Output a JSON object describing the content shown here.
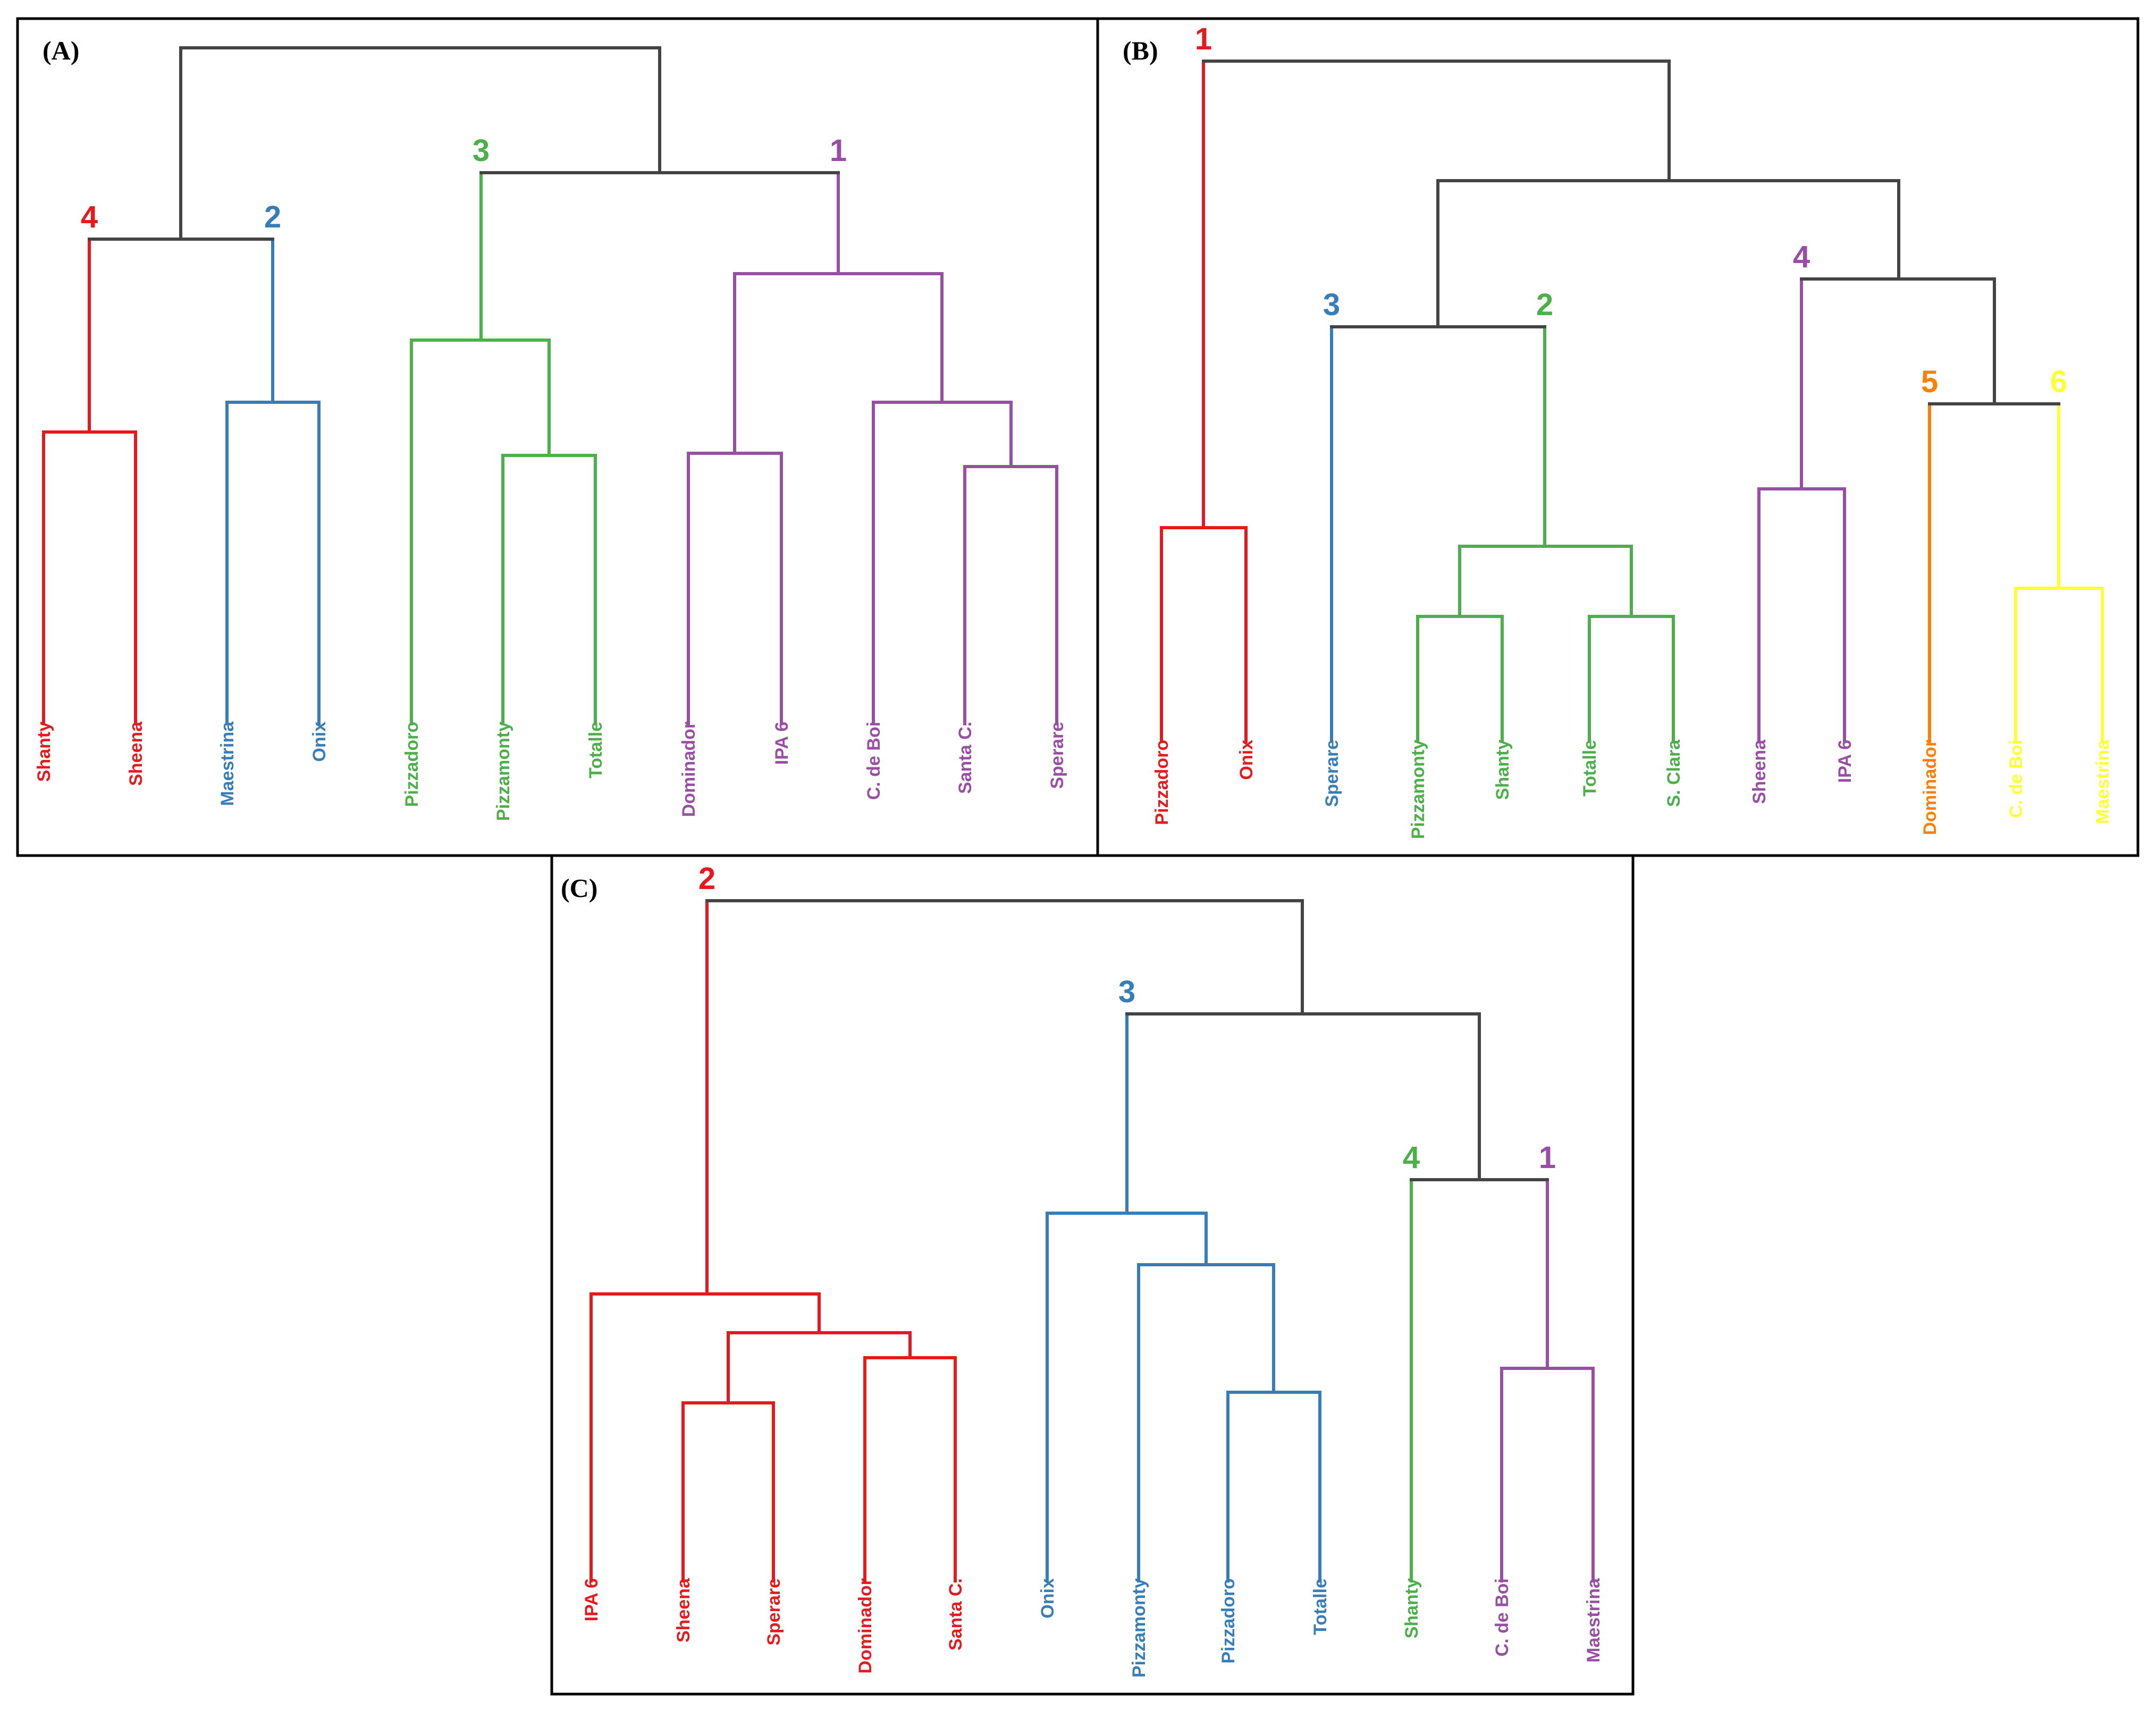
{
  "colors": {
    "red": "#e41a1c",
    "blue": "#377eb8",
    "green": "#4daf4a",
    "purple": "#984ea3",
    "orange": "#ff7f00",
    "yellow": "#ffff33",
    "root": "#444444"
  },
  "panels": [
    {
      "label": "(A)",
      "clusters": [
        {
          "num": "4",
          "color": "red"
        },
        {
          "num": "2",
          "color": "blue"
        },
        {
          "num": "3",
          "color": "green"
        },
        {
          "num": "1",
          "color": "purple"
        }
      ],
      "leaves": [
        {
          "name": "Shanty",
          "color": "red"
        },
        {
          "name": "Sheena",
          "color": "red"
        },
        {
          "name": "Maestrina",
          "color": "blue"
        },
        {
          "name": "Onix",
          "color": "blue"
        },
        {
          "name": "Pizzadoro",
          "color": "green"
        },
        {
          "name": "Pizzamonty",
          "color": "green"
        },
        {
          "name": "Totalle",
          "color": "green"
        },
        {
          "name": "Dominador",
          "color": "purple"
        },
        {
          "name": "IPA 6",
          "color": "purple"
        },
        {
          "name": "C. de Boi",
          "color": "purple"
        },
        {
          "name": "Santa C.",
          "color": "purple"
        },
        {
          "name": "Sperare",
          "color": "purple"
        }
      ]
    },
    {
      "label": "(B)",
      "clusters": [
        {
          "num": "1",
          "color": "red"
        },
        {
          "num": "3",
          "color": "blue"
        },
        {
          "num": "2",
          "color": "green"
        },
        {
          "num": "4",
          "color": "purple"
        },
        {
          "num": "5",
          "color": "orange"
        },
        {
          "num": "6",
          "color": "yellow"
        }
      ],
      "leaves": [
        {
          "name": "Pizzadoro",
          "color": "red"
        },
        {
          "name": "Onix",
          "color": "red"
        },
        {
          "name": "Sperare",
          "color": "blue"
        },
        {
          "name": "Pizzamonty",
          "color": "green"
        },
        {
          "name": "Shanty",
          "color": "green"
        },
        {
          "name": "Totalle",
          "color": "green"
        },
        {
          "name": "S. Clara",
          "color": "green"
        },
        {
          "name": "Sheena",
          "color": "purple"
        },
        {
          "name": "IPA 6",
          "color": "purple"
        },
        {
          "name": "Dominador",
          "color": "orange"
        },
        {
          "name": "C. de Boi",
          "color": "yellow"
        },
        {
          "name": "Maestrina",
          "color": "yellow"
        }
      ]
    },
    {
      "label": "(C)",
      "clusters": [
        {
          "num": "2",
          "color": "red"
        },
        {
          "num": "3",
          "color": "blue"
        },
        {
          "num": "4",
          "color": "green"
        },
        {
          "num": "1",
          "color": "purple"
        }
      ],
      "leaves": [
        {
          "name": "IPA 6",
          "color": "red"
        },
        {
          "name": "Sheena",
          "color": "red"
        },
        {
          "name": "Sperare",
          "color": "red"
        },
        {
          "name": "Dominador",
          "color": "red"
        },
        {
          "name": "Santa C.",
          "color": "red"
        },
        {
          "name": "Onix",
          "color": "blue"
        },
        {
          "name": "Pizzamonty",
          "color": "blue"
        },
        {
          "name": "Pizzadoro",
          "color": "blue"
        },
        {
          "name": "Totalle",
          "color": "blue"
        },
        {
          "name": "Shanty",
          "color": "green"
        },
        {
          "name": "C. de Boi",
          "color": "purple"
        },
        {
          "name": "Maestrina",
          "color": "purple"
        }
      ]
    }
  ]
}
